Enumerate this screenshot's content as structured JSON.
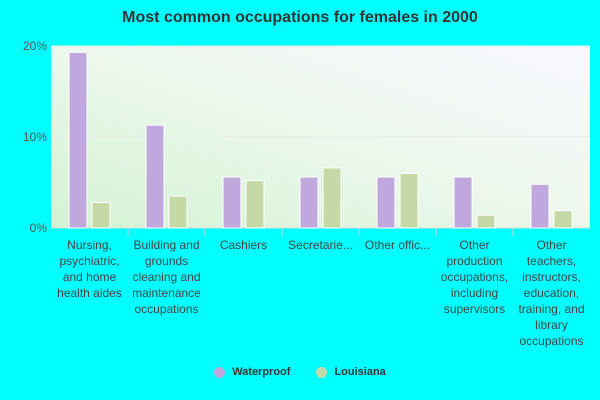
{
  "chart_data": {
    "type": "bar",
    "title": "Most common occupations for females in 2000",
    "categories": [
      "Nursing, psychiatric, and home health aides",
      "Building and grounds cleaning and maintenance occupations",
      "Cashiers",
      "Secretarie...",
      "Other offic...",
      "Other production occupations, including supervisors",
      "Other teachers, instructors, education, training, and library occupations"
    ],
    "series": [
      {
        "name": "Waterproof",
        "color": "#c0a8dc",
        "values": [
          19.3,
          11.3,
          5.6,
          5.6,
          5.6,
          5.6,
          4.8
        ]
      },
      {
        "name": "Louisiana",
        "color": "#c5d9a6",
        "values": [
          2.8,
          3.5,
          5.2,
          6.6,
          6.0,
          1.4,
          1.9
        ]
      }
    ],
    "yticks": [
      "0%",
      "10%",
      "20%"
    ],
    "ylim": [
      0,
      20
    ],
    "grid": true,
    "legend": "bottom-center"
  }
}
